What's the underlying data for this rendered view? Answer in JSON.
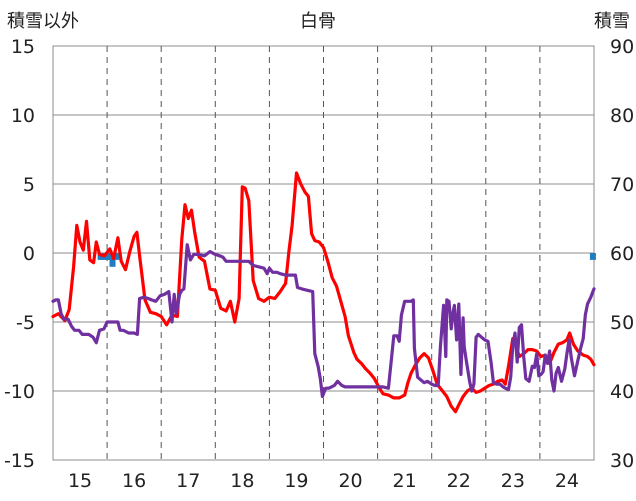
{
  "chart_data": {
    "type": "line",
    "title": "白骨",
    "left_axis_label": "積雪以外",
    "right_axis_label": "積雪",
    "left_ylim": [
      -15,
      15
    ],
    "left_ticks": [
      "15",
      "10",
      "5",
      "0",
      "-5",
      "-10",
      "-15"
    ],
    "right_ylim": [
      30,
      90
    ],
    "right_ticks": [
      "90",
      "80",
      "70",
      "60",
      "50",
      "40",
      "30"
    ],
    "x_range": [
      14.5,
      24.5
    ],
    "x_ticks": [
      "15",
      "16",
      "17",
      "18",
      "19",
      "20",
      "21",
      "22",
      "23",
      "24"
    ],
    "grid": true,
    "legend": "none",
    "series": [
      {
        "axis": "left",
        "color": "#ff0000",
        "points": [
          [
            14.5,
            -4.6
          ],
          [
            14.6,
            -4.4
          ],
          [
            14.72,
            -4.9
          ],
          [
            14.8,
            -4.1
          ],
          [
            14.88,
            -1
          ],
          [
            14.94,
            2
          ],
          [
            15,
            0.8
          ],
          [
            15.06,
            0.2
          ],
          [
            15.12,
            2.3
          ],
          [
            15.18,
            -0.5
          ],
          [
            15.25,
            -0.7
          ],
          [
            15.3,
            0.8
          ],
          [
            15.36,
            -0.1
          ],
          [
            15.45,
            -0.2
          ],
          [
            15.55,
            0.3
          ],
          [
            15.62,
            -0.4
          ],
          [
            15.7,
            1.1
          ],
          [
            15.76,
            -0.6
          ],
          [
            15.84,
            -1.2
          ],
          [
            15.92,
            0.1
          ],
          [
            16,
            1.2
          ],
          [
            16.05,
            1.5
          ],
          [
            16.1,
            -0.2
          ],
          [
            16.2,
            -3.4
          ],
          [
            16.3,
            -4.3
          ],
          [
            16.4,
            -4.4
          ],
          [
            16.5,
            -4.6
          ],
          [
            16.6,
            -5.2
          ],
          [
            16.7,
            -4.5
          ],
          [
            16.8,
            -4.6
          ],
          [
            16.88,
            1
          ],
          [
            16.94,
            3.5
          ],
          [
            17,
            2.5
          ],
          [
            17.06,
            3.1
          ],
          [
            17.12,
            1.5
          ],
          [
            17.2,
            -0.3
          ],
          [
            17.3,
            -0.6
          ],
          [
            17.4,
            -2.6
          ],
          [
            17.5,
            -2.7
          ],
          [
            17.6,
            -4
          ],
          [
            17.7,
            -4.2
          ],
          [
            17.78,
            -3.5
          ],
          [
            17.86,
            -5
          ],
          [
            17.94,
            -3.3
          ],
          [
            18,
            4.8
          ],
          [
            18.05,
            4.7
          ],
          [
            18.12,
            3.8
          ],
          [
            18.2,
            -2
          ],
          [
            18.3,
            -3.3
          ],
          [
            18.4,
            -3.5
          ],
          [
            18.5,
            -3.2
          ],
          [
            18.6,
            -3.3
          ],
          [
            18.7,
            -2.8
          ],
          [
            18.8,
            -2.2
          ],
          [
            18.86,
            0.1
          ],
          [
            18.92,
            2
          ],
          [
            19,
            5.8
          ],
          [
            19.08,
            5
          ],
          [
            19.16,
            4.4
          ],
          [
            19.22,
            4.1
          ],
          [
            19.28,
            1.4
          ],
          [
            19.34,
            0.9
          ],
          [
            19.42,
            0.8
          ],
          [
            19.5,
            0.4
          ],
          [
            19.58,
            -0.6
          ],
          [
            19.66,
            -1.8
          ],
          [
            19.74,
            -2.4
          ],
          [
            19.82,
            -3.5
          ],
          [
            19.9,
            -4.6
          ],
          [
            19.96,
            -6
          ],
          [
            20.06,
            -7.2
          ],
          [
            20.12,
            -7.7
          ],
          [
            20.2,
            -8
          ],
          [
            20.28,
            -8.4
          ],
          [
            20.36,
            -8.7
          ],
          [
            20.44,
            -9.1
          ],
          [
            20.52,
            -9.7
          ],
          [
            20.6,
            -10.2
          ],
          [
            20.7,
            -10.3
          ],
          [
            20.8,
            -10.5
          ],
          [
            20.9,
            -10.5
          ],
          [
            21,
            -10.3
          ],
          [
            21.06,
            -9.4
          ],
          [
            21.12,
            -8.7
          ],
          [
            21.2,
            -8.1
          ],
          [
            21.28,
            -7.6
          ],
          [
            21.36,
            -7.3
          ],
          [
            21.44,
            -7.6
          ],
          [
            21.52,
            -8.5
          ],
          [
            21.6,
            -9.5
          ],
          [
            21.7,
            -10
          ],
          [
            21.78,
            -10.4
          ],
          [
            21.86,
            -11.1
          ],
          [
            21.94,
            -11.5
          ],
          [
            22,
            -11
          ],
          [
            22.08,
            -10.4
          ],
          [
            22.16,
            -10
          ],
          [
            22.24,
            -9.8
          ],
          [
            22.32,
            -10.1
          ],
          [
            22.4,
            -10
          ],
          [
            22.48,
            -9.8
          ],
          [
            22.56,
            -9.6
          ],
          [
            22.64,
            -9.5
          ],
          [
            22.72,
            -9.3
          ],
          [
            22.8,
            -9.2
          ],
          [
            22.86,
            -9.5
          ],
          [
            22.92,
            -8.2
          ],
          [
            23,
            -6.2
          ],
          [
            23.06,
            -6.8
          ],
          [
            23.12,
            -7.5
          ],
          [
            23.2,
            -7.3
          ],
          [
            23.28,
            -7
          ],
          [
            23.36,
            -7
          ],
          [
            23.44,
            -7.1
          ],
          [
            23.52,
            -7.5
          ],
          [
            23.6,
            -7.4
          ],
          [
            23.68,
            -8
          ],
          [
            23.76,
            -7.2
          ],
          [
            23.84,
            -6.6
          ],
          [
            23.92,
            -6.5
          ],
          [
            24,
            -6.3
          ],
          [
            24.05,
            -5.8
          ],
          [
            24.12,
            -6.6
          ],
          [
            24.2,
            -7.1
          ],
          [
            24.3,
            -7.4
          ],
          [
            24.38,
            -7.5
          ],
          [
            24.44,
            -7.7
          ],
          [
            24.5,
            -8.1
          ]
        ]
      },
      {
        "axis": "left",
        "color": "#7030a0",
        "points": [
          [
            14.5,
            -3.5
          ],
          [
            14.55,
            -3.4
          ],
          [
            14.6,
            -3.4
          ],
          [
            14.65,
            -4.4
          ],
          [
            14.7,
            -4.8
          ],
          [
            14.78,
            -4.8
          ],
          [
            14.84,
            -5.3
          ],
          [
            14.9,
            -5.6
          ],
          [
            14.98,
            -5.6
          ],
          [
            15.04,
            -5.9
          ],
          [
            15.16,
            -5.9
          ],
          [
            15.24,
            -6.1
          ],
          [
            15.3,
            -6.5
          ],
          [
            15.36,
            -5.6
          ],
          [
            15.44,
            -5.5
          ],
          [
            15.5,
            -5
          ],
          [
            15.6,
            -5
          ],
          [
            15.7,
            -5
          ],
          [
            15.74,
            -5.6
          ],
          [
            15.8,
            -5.6
          ],
          [
            15.9,
            -5.8
          ],
          [
            16,
            -5.8
          ],
          [
            16.06,
            -5.9
          ],
          [
            16.1,
            -3.3
          ],
          [
            16.18,
            -3.2
          ],
          [
            16.26,
            -3.3
          ],
          [
            16.32,
            -3.4
          ],
          [
            16.4,
            -3.5
          ],
          [
            16.48,
            -3.1
          ],
          [
            16.56,
            -3
          ],
          [
            16.64,
            -2.8
          ],
          [
            16.7,
            -5
          ],
          [
            16.74,
            -3
          ],
          [
            16.78,
            -4.4
          ],
          [
            16.84,
            -3
          ],
          [
            16.88,
            -2.7
          ],
          [
            16.92,
            -2.6
          ],
          [
            16.98,
            0.6
          ],
          [
            17.04,
            -0.5
          ],
          [
            17.1,
            -0.1
          ],
          [
            17.18,
            -0.1
          ],
          [
            17.3,
            -0.2
          ],
          [
            17.4,
            0.1
          ],
          [
            17.5,
            -0.1
          ],
          [
            17.58,
            -0.2
          ],
          [
            17.64,
            -0.3
          ],
          [
            17.7,
            -0.6
          ],
          [
            17.8,
            -0.6
          ],
          [
            17.9,
            -0.6
          ],
          [
            18,
            -0.6
          ],
          [
            18.12,
            -0.6
          ],
          [
            18.2,
            -0.9
          ],
          [
            18.3,
            -1
          ],
          [
            18.4,
            -1.1
          ],
          [
            18.46,
            -1.5
          ],
          [
            18.5,
            -1.1
          ],
          [
            18.56,
            -1.4
          ],
          [
            18.64,
            -1.4
          ],
          [
            18.7,
            -1.5
          ],
          [
            18.8,
            -1.6
          ],
          [
            18.9,
            -1.6
          ],
          [
            18.98,
            -1.6
          ],
          [
            19.02,
            -2.5
          ],
          [
            19.1,
            -2.6
          ],
          [
            19.2,
            -2.7
          ],
          [
            19.3,
            -2.8
          ],
          [
            19.34,
            -7.3
          ],
          [
            19.4,
            -8.2
          ],
          [
            19.44,
            -9.1
          ],
          [
            19.48,
            -10.4
          ],
          [
            19.54,
            -9.8
          ],
          [
            19.6,
            -9.8
          ],
          [
            19.7,
            -9.6
          ],
          [
            19.76,
            -9.3
          ],
          [
            19.84,
            -9.6
          ],
          [
            19.9,
            -9.7
          ],
          [
            20,
            -9.7
          ],
          [
            20.1,
            -9.7
          ],
          [
            20.2,
            -9.7
          ],
          [
            20.3,
            -9.7
          ],
          [
            20.4,
            -9.7
          ],
          [
            20.5,
            -9.7
          ],
          [
            20.6,
            -9.7
          ],
          [
            20.7,
            -9.8
          ],
          [
            20.76,
            -7.5
          ],
          [
            20.8,
            -6
          ],
          [
            20.86,
            -6
          ],
          [
            20.9,
            -6.4
          ],
          [
            20.94,
            -4.5
          ],
          [
            21,
            -3.5
          ],
          [
            21.06,
            -3.5
          ],
          [
            21.12,
            -3.5
          ],
          [
            21.16,
            -3.4
          ],
          [
            21.18,
            -6.9
          ],
          [
            21.24,
            -9
          ],
          [
            21.3,
            -9.2
          ],
          [
            21.36,
            -9.4
          ],
          [
            21.42,
            -9.3
          ],
          [
            21.5,
            -9.5
          ],
          [
            21.56,
            -9.6
          ],
          [
            21.62,
            -9.6
          ],
          [
            21.66,
            -6.8
          ],
          [
            21.72,
            -3.8
          ],
          [
            21.76,
            -7.5
          ],
          [
            21.78,
            -3.4
          ],
          [
            21.82,
            -3.5
          ],
          [
            21.86,
            -5.5
          ],
          [
            21.9,
            -4.2
          ],
          [
            21.92,
            -3.8
          ],
          [
            21.96,
            -6.3
          ],
          [
            22,
            -3.7
          ],
          [
            22.04,
            -8.8
          ],
          [
            22.08,
            -4.7
          ],
          [
            22.1,
            -6.8
          ],
          [
            22.14,
            -7.8
          ],
          [
            22.2,
            -9.3
          ],
          [
            22.24,
            -10
          ],
          [
            22.28,
            -9.5
          ],
          [
            22.32,
            -6.1
          ],
          [
            22.36,
            -5.9
          ],
          [
            22.42,
            -6.1
          ],
          [
            22.48,
            -6.3
          ],
          [
            22.54,
            -6.4
          ],
          [
            22.6,
            -8
          ],
          [
            22.64,
            -9.4
          ],
          [
            22.7,
            -9.5
          ],
          [
            22.76,
            -9.5
          ],
          [
            22.82,
            -9.7
          ],
          [
            22.86,
            -9.8
          ],
          [
            22.92,
            -9.9
          ],
          [
            22.96,
            -9
          ],
          [
            23,
            -6.7
          ],
          [
            23.04,
            -5.8
          ],
          [
            23.08,
            -7.9
          ],
          [
            23.12,
            -5.4
          ],
          [
            23.16,
            -5.2
          ],
          [
            23.2,
            -7.5
          ],
          [
            23.24,
            -9.1
          ],
          [
            23.3,
            -9.3
          ],
          [
            23.36,
            -8.2
          ],
          [
            23.4,
            -8.3
          ],
          [
            23.44,
            -7.3
          ],
          [
            23.48,
            -8.9
          ],
          [
            23.52,
            -8.8
          ],
          [
            23.56,
            -8.6
          ],
          [
            23.6,
            -7.4
          ],
          [
            23.64,
            -8
          ],
          [
            23.68,
            -7.1
          ],
          [
            23.72,
            -9.2
          ],
          [
            23.76,
            -10
          ],
          [
            23.8,
            -8.7
          ],
          [
            23.84,
            -8.3
          ],
          [
            23.9,
            -9.3
          ],
          [
            23.96,
            -8.4
          ],
          [
            24,
            -7.3
          ],
          [
            24.04,
            -6.3
          ],
          [
            24.08,
            -7.6
          ],
          [
            24.14,
            -8.9
          ],
          [
            24.2,
            -7.8
          ],
          [
            24.26,
            -6.8
          ],
          [
            24.3,
            -6.2
          ],
          [
            24.34,
            -4.5
          ],
          [
            24.38,
            -3.7
          ],
          [
            24.44,
            -3.2
          ],
          [
            24.48,
            -2.8
          ],
          [
            24.5,
            -2.6
          ]
        ]
      },
      {
        "axis": "right",
        "color": "#1f7ec1",
        "type": "bar",
        "bars": [
          [
            15.38,
            59
          ],
          [
            15.45,
            59
          ],
          [
            15.5,
            59
          ],
          [
            15.55,
            59
          ],
          [
            15.6,
            58
          ],
          [
            15.67,
            59
          ],
          [
            24.48,
            59
          ]
        ]
      }
    ]
  }
}
